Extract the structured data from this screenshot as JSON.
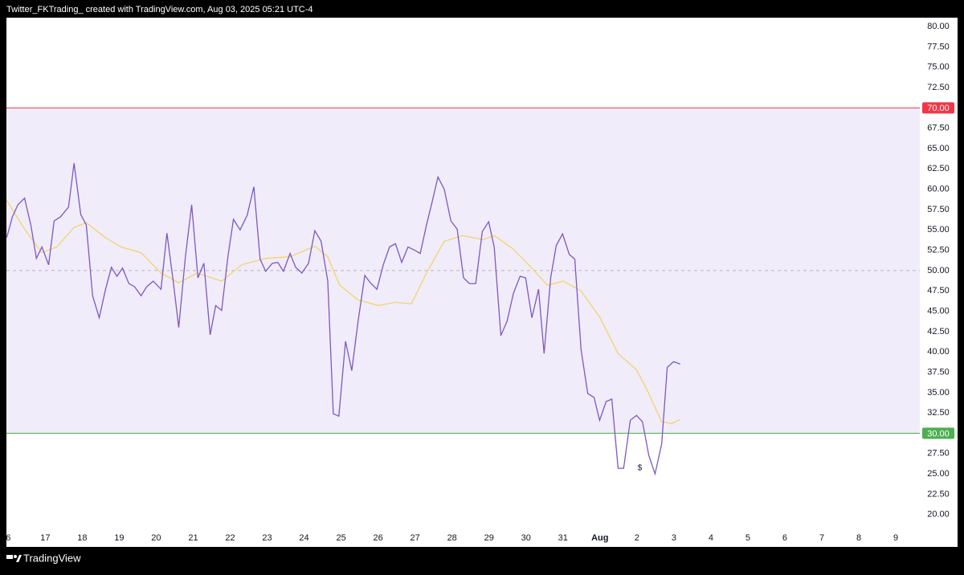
{
  "header": {
    "text": "Twitter_FKTrading_ created with TradingView.com, Aug 03, 2025 05:21 UTC-4"
  },
  "footer": {
    "logo": "TradingView"
  },
  "chart_data": {
    "type": "line",
    "xlim": [
      -0.05,
      24.65
    ],
    "ylim": [
      16.03,
      81.09
    ],
    "xticks": [
      {
        "value": 0,
        "label": "6"
      },
      {
        "value": 1,
        "label": "17"
      },
      {
        "value": 2,
        "label": "18"
      },
      {
        "value": 3,
        "label": "19"
      },
      {
        "value": 4,
        "label": "20"
      },
      {
        "value": 5,
        "label": "21"
      },
      {
        "value": 6,
        "label": "22"
      },
      {
        "value": 7,
        "label": "23"
      },
      {
        "value": 8,
        "label": "24"
      },
      {
        "value": 9,
        "label": "25"
      },
      {
        "value": 10,
        "label": "26"
      },
      {
        "value": 11,
        "label": "27"
      },
      {
        "value": 12,
        "label": "28"
      },
      {
        "value": 13,
        "label": "29"
      },
      {
        "value": 14,
        "label": "30"
      },
      {
        "value": 15,
        "label": "31"
      },
      {
        "value": 16,
        "label": "Aug"
      },
      {
        "value": 17,
        "label": "2"
      },
      {
        "value": 18,
        "label": "3"
      },
      {
        "value": 19,
        "label": "4"
      },
      {
        "value": 20,
        "label": "5"
      },
      {
        "value": 21,
        "label": "6"
      },
      {
        "value": 22,
        "label": "7"
      },
      {
        "value": 23,
        "label": "8"
      },
      {
        "value": 24,
        "label": "9"
      }
    ],
    "yticks": [
      {
        "value": 20,
        "label": "20.00"
      },
      {
        "value": 22.5,
        "label": "22.50"
      },
      {
        "value": 25,
        "label": "25.00"
      },
      {
        "value": 27.5,
        "label": "27.50"
      },
      {
        "value": 32.5,
        "label": "32.50"
      },
      {
        "value": 35,
        "label": "35.00"
      },
      {
        "value": 37.5,
        "label": "37.50"
      },
      {
        "value": 40,
        "label": "40.00"
      },
      {
        "value": 42.5,
        "label": "42.50"
      },
      {
        "value": 45,
        "label": "45.00"
      },
      {
        "value": 47.5,
        "label": "47.50"
      },
      {
        "value": 50,
        "label": "50.00"
      },
      {
        "value": 52.5,
        "label": "52.50"
      },
      {
        "value": 55,
        "label": "55.00"
      },
      {
        "value": 57.5,
        "label": "57.50"
      },
      {
        "value": 60,
        "label": "60.00"
      },
      {
        "value": 62.5,
        "label": "62.50"
      },
      {
        "value": 65,
        "label": "65.00"
      },
      {
        "value": 67.5,
        "label": "67.50"
      },
      {
        "value": 72.5,
        "label": "72.50"
      },
      {
        "value": 75,
        "label": "75.00"
      },
      {
        "value": 77.5,
        "label": "77.50"
      },
      {
        "value": 80,
        "label": "80.00"
      }
    ],
    "levels": [
      {
        "value": 70,
        "label": "70.00",
        "color": "#f23645"
      },
      {
        "value": 30,
        "label": "30.00",
        "color": "#4caf50"
      }
    ],
    "midline": 50,
    "band_color": "#f1ecfa",
    "annotations": [
      {
        "text": "$",
        "x": 17.08,
        "y": 25.7
      }
    ],
    "series": [
      {
        "color": "#7e57c2",
        "x": [
          -0.04,
          0.11,
          0.26,
          0.44,
          0.61,
          0.76,
          0.91,
          1.09,
          1.24,
          1.41,
          1.63,
          1.78,
          1.96,
          2.11,
          2.28,
          2.46,
          2.63,
          2.79,
          2.94,
          3.09,
          3.26,
          3.42,
          3.59,
          3.74,
          3.92,
          4.13,
          4.29,
          4.46,
          4.61,
          4.79,
          4.96,
          5.13,
          5.29,
          5.46,
          5.61,
          5.77,
          5.94,
          6.09,
          6.27,
          6.46,
          6.64,
          6.81,
          6.96,
          7.14,
          7.29,
          7.44,
          7.62,
          7.77,
          7.94,
          8.12,
          8.29,
          8.46,
          8.64,
          8.79,
          8.94,
          9.12,
          9.29,
          9.46,
          9.64,
          9.79,
          9.97,
          10.14,
          10.31,
          10.47,
          10.64,
          10.81,
          10.99,
          11.14,
          11.31,
          11.47,
          11.62,
          11.79,
          11.97,
          12.14,
          12.31,
          12.47,
          12.64,
          12.82,
          12.99,
          13.14,
          13.32,
          13.49,
          13.66,
          13.84,
          13.99,
          14.16,
          14.34,
          14.49,
          14.67,
          14.82,
          14.99,
          15.17,
          15.32,
          15.49,
          15.67,
          15.84,
          15.99,
          16.17,
          16.32,
          16.49,
          16.64,
          16.82,
          16.99,
          17.15,
          17.32,
          17.49,
          17.67,
          17.82,
          17.99,
          18.17
        ],
        "values": [
          54.1,
          56.6,
          58.1,
          58.9,
          55.6,
          51.5,
          52.9,
          50.7,
          56.1,
          56.6,
          57.8,
          63.2,
          56.9,
          55.6,
          46.9,
          44.2,
          47.7,
          50.4,
          49.3,
          50.3,
          48.4,
          48.0,
          46.9,
          48.0,
          48.7,
          47.7,
          54.6,
          48.7,
          43.0,
          51.7,
          58.1,
          49.1,
          50.9,
          42.1,
          45.7,
          45.1,
          51.7,
          56.3,
          55.0,
          56.8,
          60.3,
          51.4,
          49.9,
          50.9,
          51.0,
          49.9,
          52.1,
          50.4,
          49.7,
          50.9,
          54.9,
          53.6,
          48.7,
          32.4,
          32.1,
          41.3,
          37.7,
          43.8,
          49.4,
          48.5,
          47.7,
          50.7,
          52.9,
          53.3,
          51.0,
          52.9,
          52.5,
          52.1,
          55.6,
          58.6,
          61.5,
          60.0,
          56.1,
          55.1,
          49.1,
          48.4,
          48.4,
          54.8,
          56.0,
          52.9,
          42.0,
          43.8,
          47.2,
          49.3,
          49.1,
          44.2,
          47.7,
          39.8,
          49.2,
          53.1,
          54.5,
          52.0,
          51.4,
          40.3,
          34.9,
          34.4,
          31.6,
          33.9,
          34.2,
          25.7,
          25.7,
          31.6,
          32.2,
          31.4,
          27.3,
          25.0,
          28.7,
          38.1,
          38.8,
          38.5
        ]
      },
      {
        "color": "#f3d36b",
        "x": [
          -0.04,
          0.44,
          0.91,
          1.31,
          1.78,
          2.11,
          2.61,
          3.05,
          3.59,
          4.13,
          4.61,
          5.11,
          5.77,
          6.31,
          6.96,
          7.62,
          8.29,
          8.64,
          8.96,
          9.46,
          10.01,
          10.47,
          10.9,
          11.31,
          11.79,
          12.29,
          12.84,
          13.14,
          13.64,
          14.14,
          14.58,
          15.01,
          15.49,
          15.99,
          16.49,
          16.99,
          17.32,
          17.67,
          17.95,
          18.17
        ],
        "values": [
          58.6,
          55.1,
          52.2,
          52.9,
          55.3,
          55.9,
          54.1,
          52.9,
          52.2,
          49.7,
          48.5,
          49.7,
          48.7,
          50.7,
          51.5,
          51.7,
          53.0,
          51.7,
          48.2,
          46.4,
          45.7,
          46.1,
          45.9,
          49.7,
          53.6,
          54.3,
          53.8,
          54.3,
          52.7,
          50.4,
          48.2,
          48.7,
          47.5,
          44.3,
          39.8,
          37.8,
          34.9,
          31.4,
          31.2,
          31.7
        ]
      }
    ]
  }
}
